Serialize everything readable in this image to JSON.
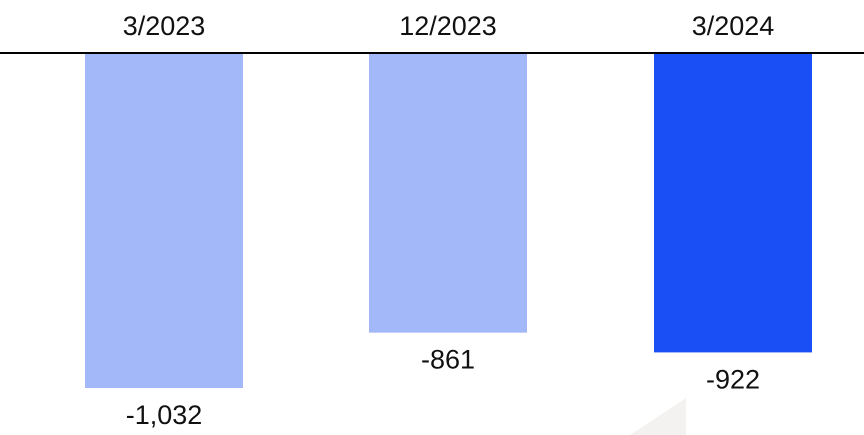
{
  "chart_data": {
    "type": "bar",
    "orientation": "vertical",
    "categories": [
      "3/2023",
      "12/2023",
      "3/2024"
    ],
    "values": [
      -1032,
      -861,
      -922
    ],
    "value_labels": [
      "-1,032",
      "-861",
      "-922"
    ],
    "category_axis_position": "top",
    "ylim": [
      -1032,
      0
    ],
    "grid": false,
    "legend": "none",
    "title": "",
    "xlabel": "",
    "ylabel": "",
    "colors": {
      "normal": "#a3b8f8",
      "highlight": "#1a4ff5",
      "axis": "#000000"
    },
    "highlight_index": 2
  }
}
